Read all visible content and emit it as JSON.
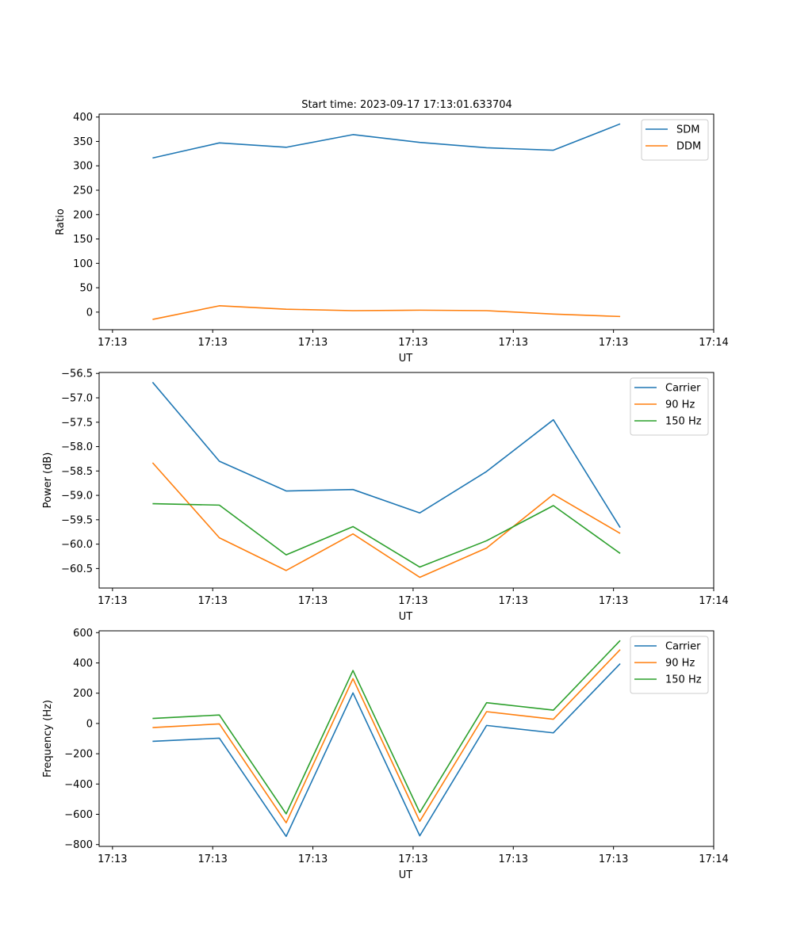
{
  "title": "Start time: 2023-09-17 17:13:01.633704",
  "colors": {
    "blue": "#1f77b4",
    "orange": "#ff7f0e",
    "green": "#2ca02c"
  },
  "chart_data": [
    {
      "type": "line",
      "ylabel": "Ratio",
      "xlabel": "UT",
      "x": [
        1,
        2,
        3,
        4,
        5,
        6,
        7,
        8
      ],
      "xlim": [
        0.2,
        9.4
      ],
      "xticks": [
        0.4,
        1.9,
        3.4,
        4.9,
        6.4,
        7.9,
        9.4
      ],
      "xtick_labels": [
        "17:13",
        "17:13",
        "17:13",
        "17:13",
        "17:13",
        "17:13",
        "17:14"
      ],
      "ylim": [
        -36,
        406
      ],
      "yticks": [
        0,
        50,
        100,
        150,
        200,
        250,
        300,
        350,
        400
      ],
      "ytick_labels": [
        "0",
        "50",
        "100",
        "150",
        "200",
        "250",
        "300",
        "350",
        "400"
      ],
      "legend": "top-right",
      "series": [
        {
          "name": "SDM",
          "color": "#1f77b4",
          "values": [
            316,
            347,
            338,
            364,
            348,
            337,
            332,
            386
          ]
        },
        {
          "name": "DDM",
          "color": "#ff7f0e",
          "values": [
            -15,
            13,
            6,
            3,
            4,
            3,
            -4,
            -9
          ]
        }
      ]
    },
    {
      "type": "line",
      "ylabel": "Power (dB)",
      "xlabel": "UT",
      "x": [
        1,
        2,
        3,
        4,
        5,
        6,
        7,
        8
      ],
      "xlim": [
        0.2,
        9.4
      ],
      "xticks": [
        0.4,
        1.9,
        3.4,
        4.9,
        6.4,
        7.9,
        9.4
      ],
      "xtick_labels": [
        "17:13",
        "17:13",
        "17:13",
        "17:13",
        "17:13",
        "17:13",
        "17:14"
      ],
      "ylim": [
        -60.9,
        -56.48
      ],
      "yticks": [
        -60.5,
        -60.0,
        -59.5,
        -59.0,
        -58.5,
        -58.0,
        -57.5,
        -57.0,
        -56.5
      ],
      "ytick_labels": [
        "−60.5",
        "−60.0",
        "−59.5",
        "−59.0",
        "−58.5",
        "−58.0",
        "−57.5",
        "−57.0",
        "−56.5"
      ],
      "legend": "top-right",
      "series": [
        {
          "name": "Carrier",
          "color": "#1f77b4",
          "values": [
            -56.68,
            -58.3,
            -58.91,
            -58.88,
            -59.36,
            -58.51,
            -57.45,
            -59.66
          ]
        },
        {
          "name": "90 Hz",
          "color": "#ff7f0e",
          "values": [
            -58.33,
            -59.87,
            -60.54,
            -59.79,
            -60.68,
            -60.08,
            -58.98,
            -59.78
          ]
        },
        {
          "name": "150 Hz",
          "color": "#2ca02c",
          "values": [
            -59.17,
            -59.2,
            -60.22,
            -59.64,
            -60.47,
            -59.93,
            -59.21,
            -60.19
          ]
        }
      ]
    },
    {
      "type": "line",
      "ylabel": "Frequency (Hz)",
      "xlabel": "UT",
      "x": [
        1,
        2,
        3,
        4,
        5,
        6,
        7,
        8
      ],
      "xlim": [
        0.2,
        9.4
      ],
      "xticks": [
        0.4,
        1.9,
        3.4,
        4.9,
        6.4,
        7.9,
        9.4
      ],
      "xtick_labels": [
        "17:13",
        "17:13",
        "17:13",
        "17:13",
        "17:13",
        "17:13",
        "17:14"
      ],
      "ylim": [
        -812,
        612
      ],
      "yticks": [
        -800,
        -600,
        -400,
        -200,
        0,
        200,
        400,
        600
      ],
      "ytick_labels": [
        "−800",
        "−600",
        "−400",
        "−200",
        "0",
        "200",
        "400",
        "600"
      ],
      "legend": "top-right",
      "series": [
        {
          "name": "Carrier",
          "color": "#1f77b4",
          "values": [
            -118,
            -97,
            -746,
            202,
            -742,
            -13,
            -62,
            395
          ]
        },
        {
          "name": "90 Hz",
          "color": "#ff7f0e",
          "values": [
            -27,
            -3,
            -656,
            296,
            -646,
            78,
            28,
            488
          ]
        },
        {
          "name": "150 Hz",
          "color": "#2ca02c",
          "values": [
            33,
            56,
            -597,
            350,
            -588,
            137,
            88,
            548
          ]
        }
      ]
    }
  ]
}
